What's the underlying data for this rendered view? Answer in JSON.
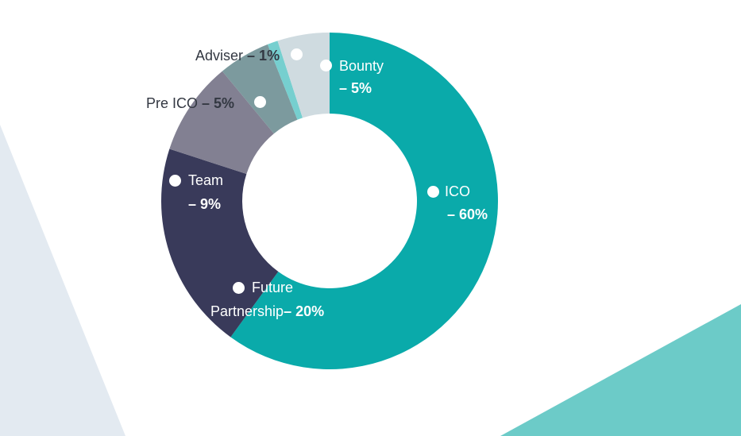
{
  "chart_data": {
    "type": "pie",
    "donut": true,
    "title": "",
    "slices": [
      {
        "label": "ICO",
        "value": 60,
        "display": "– 60%",
        "color": "#0aaaaa"
      },
      {
        "label": "Future Partnership",
        "value": 20,
        "display": "– 20%",
        "color": "#393a5a"
      },
      {
        "label": "Team",
        "value": 9,
        "display": "– 9%",
        "color": "#828092"
      },
      {
        "label": "Pre ICO",
        "value": 5,
        "display": "– 5%",
        "color": "#7c9a9e"
      },
      {
        "label": "Adviser",
        "value": 1,
        "display": "– 1%",
        "color": "#76cfcf"
      },
      {
        "label": "Bounty",
        "value": 5,
        "display": "– 5%",
        "color": "#cfdbe0"
      }
    ],
    "legend": "inline"
  },
  "labels": {
    "ico": {
      "name": "ICO",
      "pct": "– 60%"
    },
    "future": {
      "name": "Future",
      "name2": "Partnership",
      "pct": "– 20%"
    },
    "team": {
      "name": "Team",
      "pct": "– 9%"
    },
    "preico": {
      "name": "Pre ICO",
      "pct": "– 5%"
    },
    "adviser": {
      "name": "Adviser",
      "pct": "– 1%"
    },
    "bounty": {
      "name": "Bounty",
      "pct": "– 5%"
    }
  },
  "colors": {
    "bg_left_shape": "#e3eaf1",
    "bg_right_shape": "#6ccbc8",
    "label_dark": "#333842",
    "label_light": "#ffffff"
  }
}
